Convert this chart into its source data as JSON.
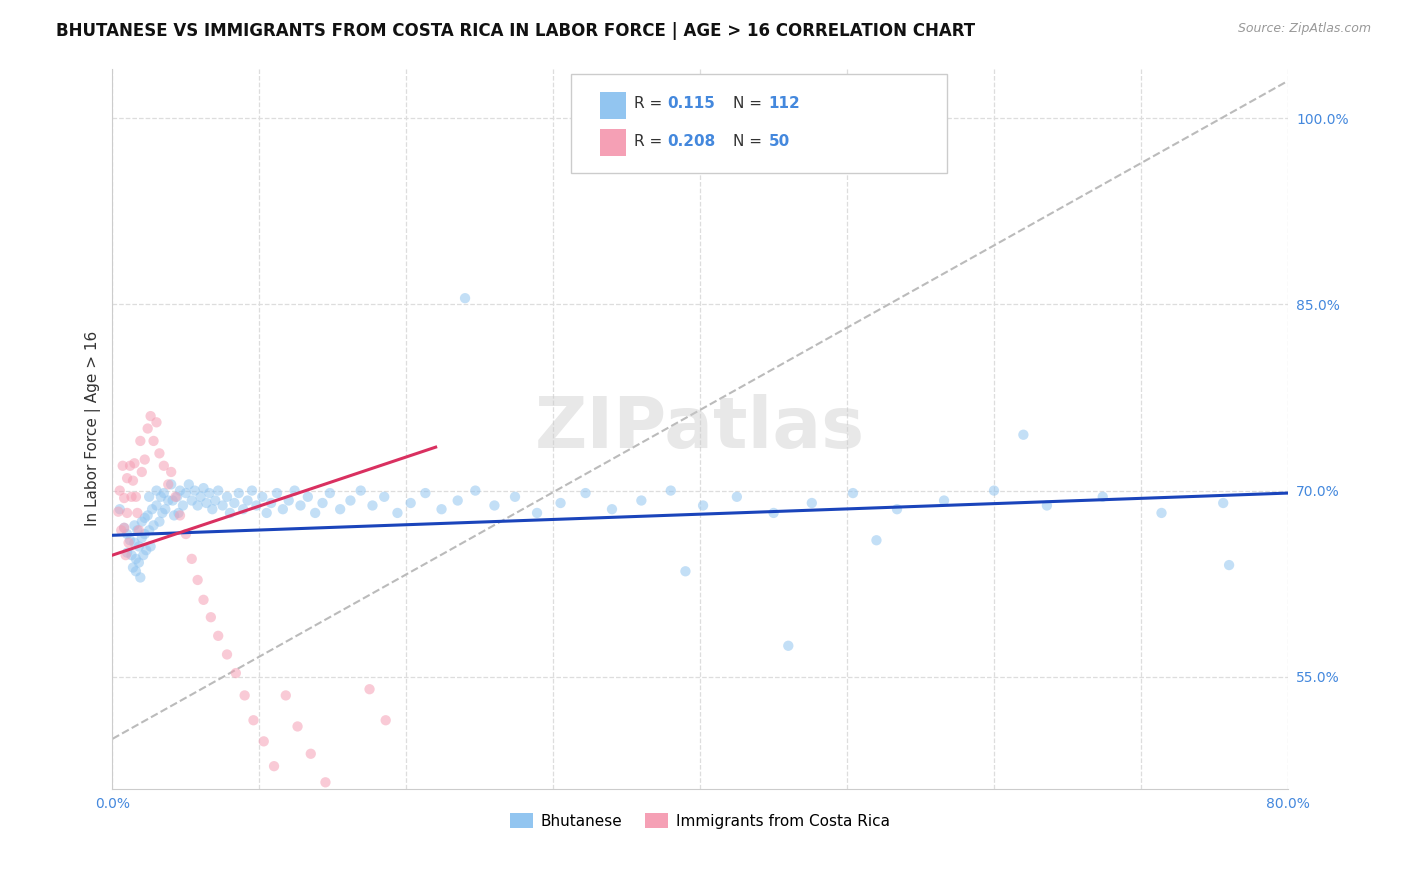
{
  "title": "BHUTANESE VS IMMIGRANTS FROM COSTA RICA IN LABOR FORCE | AGE > 16 CORRELATION CHART",
  "source": "Source: ZipAtlas.com",
  "ylabel": "In Labor Force | Age > 16",
  "xlim": [
    0.0,
    0.8
  ],
  "ylim": [
    0.46,
    1.04
  ],
  "xticks": [
    0.0,
    0.1,
    0.2,
    0.3,
    0.4,
    0.5,
    0.6,
    0.7,
    0.8
  ],
  "ytick_positions": [
    0.55,
    0.7,
    0.85,
    1.0
  ],
  "ytick_labels": [
    "55.0%",
    "70.0%",
    "85.0%",
    "100.0%"
  ],
  "watermark": "ZIPatlas",
  "blue_color": "#92c5f0",
  "pink_color": "#f5a0b5",
  "blue_line_color": "#1a44bb",
  "pink_line_color": "#d93060",
  "dashed_line_color": "#bbbbbb",
  "legend_R_blue": "0.115",
  "legend_N_blue": "112",
  "legend_R_pink": "0.208",
  "legend_N_pink": "50",
  "blue_scatter_x": [
    0.005,
    0.008,
    0.01,
    0.01,
    0.012,
    0.013,
    0.014,
    0.015,
    0.015,
    0.016,
    0.016,
    0.017,
    0.018,
    0.018,
    0.019,
    0.02,
    0.02,
    0.021,
    0.022,
    0.022,
    0.023,
    0.024,
    0.025,
    0.025,
    0.026,
    0.027,
    0.028,
    0.03,
    0.03,
    0.032,
    0.033,
    0.034,
    0.035,
    0.036,
    0.038,
    0.04,
    0.041,
    0.042,
    0.044,
    0.045,
    0.046,
    0.048,
    0.05,
    0.052,
    0.054,
    0.056,
    0.058,
    0.06,
    0.062,
    0.064,
    0.066,
    0.068,
    0.07,
    0.072,
    0.075,
    0.078,
    0.08,
    0.083,
    0.086,
    0.089,
    0.092,
    0.095,
    0.098,
    0.102,
    0.105,
    0.108,
    0.112,
    0.116,
    0.12,
    0.124,
    0.128,
    0.133,
    0.138,
    0.143,
    0.148,
    0.155,
    0.162,
    0.169,
    0.177,
    0.185,
    0.194,
    0.203,
    0.213,
    0.224,
    0.235,
    0.247,
    0.26,
    0.274,
    0.289,
    0.305,
    0.322,
    0.34,
    0.36,
    0.38,
    0.402,
    0.425,
    0.45,
    0.476,
    0.504,
    0.534,
    0.566,
    0.6,
    0.636,
    0.674,
    0.714,
    0.756,
    0.24,
    0.39,
    0.62,
    0.76,
    0.52,
    0.46
  ],
  "blue_scatter_y": [
    0.685,
    0.67,
    0.665,
    0.65,
    0.66,
    0.648,
    0.638,
    0.672,
    0.658,
    0.645,
    0.635,
    0.668,
    0.655,
    0.642,
    0.63,
    0.675,
    0.662,
    0.648,
    0.678,
    0.665,
    0.652,
    0.68,
    0.695,
    0.668,
    0.655,
    0.685,
    0.672,
    0.7,
    0.688,
    0.675,
    0.695,
    0.682,
    0.698,
    0.685,
    0.692,
    0.705,
    0.692,
    0.68,
    0.695,
    0.682,
    0.7,
    0.688,
    0.698,
    0.705,
    0.692,
    0.7,
    0.688,
    0.695,
    0.702,
    0.69,
    0.698,
    0.685,
    0.692,
    0.7,
    0.688,
    0.695,
    0.682,
    0.69,
    0.698,
    0.685,
    0.692,
    0.7,
    0.688,
    0.695,
    0.682,
    0.69,
    0.698,
    0.685,
    0.692,
    0.7,
    0.688,
    0.695,
    0.682,
    0.69,
    0.698,
    0.685,
    0.692,
    0.7,
    0.688,
    0.695,
    0.682,
    0.69,
    0.698,
    0.685,
    0.692,
    0.7,
    0.688,
    0.695,
    0.682,
    0.69,
    0.698,
    0.685,
    0.692,
    0.7,
    0.688,
    0.695,
    0.682,
    0.69,
    0.698,
    0.685,
    0.692,
    0.7,
    0.688,
    0.695,
    0.682,
    0.69,
    0.855,
    0.635,
    0.745,
    0.64,
    0.66,
    0.575
  ],
  "pink_scatter_x": [
    0.004,
    0.005,
    0.006,
    0.007,
    0.008,
    0.008,
    0.009,
    0.01,
    0.01,
    0.011,
    0.012,
    0.013,
    0.014,
    0.015,
    0.016,
    0.017,
    0.018,
    0.019,
    0.02,
    0.022,
    0.024,
    0.026,
    0.028,
    0.03,
    0.032,
    0.035,
    0.038,
    0.04,
    0.043,
    0.046,
    0.05,
    0.054,
    0.058,
    0.062,
    0.067,
    0.072,
    0.078,
    0.084,
    0.09,
    0.096,
    0.103,
    0.11,
    0.118,
    0.126,
    0.135,
    0.145,
    0.155,
    0.165,
    0.175,
    0.186
  ],
  "pink_scatter_y": [
    0.683,
    0.7,
    0.668,
    0.72,
    0.694,
    0.67,
    0.648,
    0.71,
    0.682,
    0.658,
    0.72,
    0.695,
    0.708,
    0.722,
    0.695,
    0.682,
    0.668,
    0.74,
    0.715,
    0.725,
    0.75,
    0.76,
    0.74,
    0.755,
    0.73,
    0.72,
    0.705,
    0.715,
    0.695,
    0.68,
    0.665,
    0.645,
    0.628,
    0.612,
    0.598,
    0.583,
    0.568,
    0.553,
    0.535,
    0.515,
    0.498,
    0.478,
    0.535,
    0.51,
    0.488,
    0.465,
    0.445,
    0.422,
    0.54,
    0.515
  ],
  "blue_fit_x": [
    0.0,
    0.8
  ],
  "blue_fit_y": [
    0.664,
    0.698
  ],
  "pink_fit_x": [
    0.0,
    0.22
  ],
  "pink_fit_y": [
    0.648,
    0.735
  ],
  "diag_fit_x": [
    0.0,
    0.8
  ],
  "diag_fit_y": [
    0.5,
    1.03
  ],
  "background_color": "#ffffff",
  "grid_color": "#dddddd",
  "title_fontsize": 12,
  "axis_label_fontsize": 11,
  "tick_fontsize": 10,
  "marker_size": 55,
  "marker_alpha": 0.55
}
